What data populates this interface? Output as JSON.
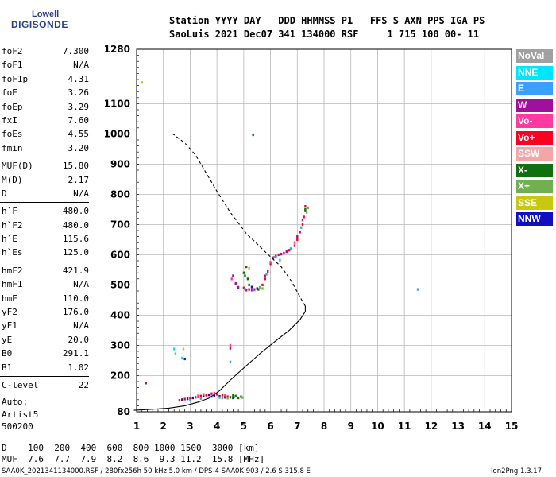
{
  "logo": {
    "line1": "Lowell",
    "line2": "DIGISONDE"
  },
  "header": {
    "line1": "Station YYYY DAY   DDD HHMMSS P1   FFS S AXN PPS IGA PS",
    "line2": "SaoLuis 2021 Dec07 341 134000 RSF     1 715 100 00- 11"
  },
  "params": {
    "group1": [
      {
        "label": "foF2",
        "value": "7.300"
      },
      {
        "label": "foF1",
        "value": "N/A"
      },
      {
        "label": "foF1p",
        "value": "4.31"
      },
      {
        "label": "foE",
        "value": "3.26"
      },
      {
        "label": "foEp",
        "value": "3.29"
      },
      {
        "label": "fxI",
        "value": "7.60"
      },
      {
        "label": "foEs",
        "value": "4.55"
      },
      {
        "label": "fmin",
        "value": "3.20"
      }
    ],
    "group2": [
      {
        "label": "MUF(D)",
        "value": "15.80"
      },
      {
        "label": "M(D)",
        "value": "2.17"
      },
      {
        "label": "D",
        "value": "N/A"
      }
    ],
    "group3": [
      {
        "label": "h`F",
        "value": "480.0"
      },
      {
        "label": "h`F2",
        "value": "480.0"
      },
      {
        "label": "h`E",
        "value": "115.6"
      },
      {
        "label": "h`Es",
        "value": "125.0"
      }
    ],
    "group4": [
      {
        "label": "hmF2",
        "value": "421.9"
      },
      {
        "label": "hmF1",
        "value": "N/A"
      },
      {
        "label": "hmE",
        "value": "110.0"
      },
      {
        "label": "yF2",
        "value": "176.0"
      },
      {
        "label": "yF1",
        "value": "N/A"
      },
      {
        "label": "yE",
        "value": "20.0"
      },
      {
        "label": "B0",
        "value": "291.1"
      },
      {
        "label": "B1",
        "value": "1.02"
      }
    ],
    "group5": [
      {
        "label": "C-level",
        "value": "22"
      }
    ],
    "auto": [
      "Auto:",
      "Artist5",
      "500200"
    ]
  },
  "legend": [
    {
      "label": "NoVal",
      "color": "#a0a0a0"
    },
    {
      "label": "NNE",
      "color": "#00e5ff"
    },
    {
      "label": "E",
      "color": "#3aa0ff"
    },
    {
      "label": "W",
      "color": "#a0109c"
    },
    {
      "label": "Vo-",
      "color": "#ff3aa0"
    },
    {
      "label": "Vo+",
      "color": "#ff0022"
    },
    {
      "label": "SSW",
      "color": "#f4a6a6"
    },
    {
      "label": "X-",
      "color": "#107010"
    },
    {
      "label": "X+",
      "color": "#70b050"
    },
    {
      "label": "SSE",
      "color": "#c8c810"
    },
    {
      "label": "NNW",
      "color": "#1010c0"
    }
  ],
  "muf_table": {
    "d_label": "D",
    "d_values": [
      "100",
      "200",
      "400",
      "600",
      "800",
      "1000",
      "1500",
      "3000"
    ],
    "d_unit": "[km]",
    "muf_label": "MUF",
    "muf_values": [
      "7.6",
      "7.7",
      "7.9",
      "8.2",
      "8.6",
      "9.3",
      "11.2",
      "15.8"
    ],
    "muf_unit": "[MHz]"
  },
  "footer": "SAA0K_2021341134000.RSF / 280fx256h 50 kHz 5.0 km / DPS-4 SAA0K 903 / 2.6 S 315.8 E",
  "version": "Ion2Png 1.3.17",
  "chart_data": {
    "type": "scatter",
    "xlim": [
      1,
      15
    ],
    "ylim": [
      80,
      1280
    ],
    "xticks": [
      1,
      2,
      3,
      4,
      5,
      6,
      7,
      8,
      9,
      10,
      11,
      12,
      13,
      14,
      15
    ],
    "yticks": [
      80,
      200,
      300,
      400,
      500,
      600,
      700,
      800,
      900,
      1000,
      1100,
      1280
    ],
    "grid": true,
    "profile_line": [
      [
        0.9,
        85
      ],
      [
        1.5,
        88
      ],
      [
        2.2,
        92
      ],
      [
        2.8,
        100
      ],
      [
        3.3,
        112
      ],
      [
        3.7,
        125
      ],
      [
        4.1,
        150
      ],
      [
        4.5,
        185
      ],
      [
        5.0,
        225
      ],
      [
        5.6,
        272
      ],
      [
        6.2,
        315
      ],
      [
        6.7,
        350
      ],
      [
        7.1,
        385
      ],
      [
        7.3,
        412
      ],
      [
        7.3,
        430
      ],
      [
        7.1,
        460
      ],
      [
        6.8,
        510
      ],
      [
        6.4,
        560
      ],
      [
        5.8,
        610
      ],
      [
        5.1,
        670
      ],
      [
        4.5,
        740
      ],
      [
        4.0,
        810
      ],
      [
        3.6,
        870
      ],
      [
        3.2,
        930
      ],
      [
        2.8,
        970
      ],
      [
        2.35,
        1000
      ]
    ],
    "trace_points": [
      {
        "color": "#ff0022",
        "pts": [
          [
            5.0,
            490
          ],
          [
            5.2,
            485
          ],
          [
            5.4,
            485
          ],
          [
            5.6,
            490
          ],
          [
            5.7,
            500
          ],
          [
            5.8,
            520
          ],
          [
            5.9,
            545
          ],
          [
            6.0,
            570
          ],
          [
            6.1,
            590
          ],
          [
            6.3,
            600
          ],
          [
            6.5,
            605
          ],
          [
            6.7,
            615
          ],
          [
            6.9,
            630
          ],
          [
            7.0,
            650
          ],
          [
            7.1,
            675
          ],
          [
            7.2,
            700
          ],
          [
            7.25,
            725
          ],
          [
            7.3,
            745
          ],
          [
            7.3,
            760
          ]
        ]
      },
      {
        "color": "#a0109c",
        "pts": [
          [
            4.6,
            530
          ],
          [
            4.7,
            505
          ],
          [
            4.8,
            492
          ],
          [
            5.1,
            483
          ],
          [
            5.3,
            483
          ],
          [
            6.2,
            595
          ],
          [
            6.6,
            610
          ],
          [
            7.0,
            660
          ],
          [
            7.2,
            715
          ],
          [
            5.8,
            530
          ],
          [
            6.4,
            602
          ]
        ]
      },
      {
        "color": "#3aa0ff",
        "pts": [
          [
            5.05,
            486
          ],
          [
            5.35,
            483
          ],
          [
            5.85,
            535
          ],
          [
            6.15,
            592
          ],
          [
            6.75,
            620
          ],
          [
            7.15,
            690
          ],
          [
            6.35,
            582
          ],
          [
            4.5,
            245
          ],
          [
            11.5,
            485
          ]
        ]
      },
      {
        "color": "#107010",
        "pts": [
          [
            5.0,
            540
          ],
          [
            5.05,
            530
          ],
          [
            5.1,
            560
          ],
          [
            5.15,
            520
          ],
          [
            5.2,
            500
          ],
          [
            5.55,
            485
          ],
          [
            7.3,
            750
          ],
          [
            5.35,
            997
          ]
        ]
      },
      {
        "color": "#70b050",
        "pts": [
          [
            5.6,
            492
          ],
          [
            5.7,
            488
          ],
          [
            7.4,
            755
          ],
          [
            7.35,
            740
          ]
        ]
      },
      {
        "color": "#ff3aa0",
        "pts": [
          [
            4.55,
            520
          ],
          [
            6.0,
            575
          ],
          [
            6.9,
            640
          ],
          [
            4.5,
            300
          ]
        ]
      },
      {
        "color": "#00e5ff",
        "pts": [
          [
            2.4,
            288
          ],
          [
            2.45,
            272
          ],
          [
            2.7,
            258
          ]
        ]
      },
      {
        "color": "#1010c0",
        "pts": [
          [
            2.8,
            255
          ],
          [
            5.3,
            493
          ],
          [
            5.5,
            488
          ]
        ]
      },
      {
        "color": "#c8c810",
        "pts": [
          [
            1.2,
            1170
          ],
          [
            5.2,
            555
          ],
          [
            2.75,
            288
          ]
        ]
      },
      {
        "color": "#a0109c",
        "pts": [
          [
            1.35,
            175
          ],
          [
            4.5,
            290
          ]
        ]
      },
      {
        "color": "#ff0022",
        "pts": [
          [
            2.6,
            118
          ],
          [
            2.8,
            122
          ],
          [
            3.0,
            125
          ],
          [
            3.2,
            128
          ],
          [
            3.4,
            132
          ],
          [
            3.6,
            135
          ],
          [
            3.8,
            140
          ],
          [
            4.0,
            138
          ],
          [
            4.2,
            135
          ],
          [
            4.4,
            130
          ]
        ]
      },
      {
        "color": "#1010c0",
        "pts": [
          [
            2.7,
            120
          ],
          [
            2.9,
            123
          ],
          [
            3.1,
            126
          ],
          [
            3.3,
            130
          ],
          [
            3.5,
            133
          ],
          [
            3.7,
            136
          ],
          [
            3.9,
            133
          ],
          [
            4.1,
            131
          ],
          [
            4.3,
            128
          ],
          [
            4.6,
            126
          ]
        ]
      },
      {
        "color": "#107010",
        "pts": [
          [
            4.3,
            130
          ],
          [
            4.5,
            128
          ],
          [
            4.7,
            132
          ],
          [
            4.9,
            130
          ],
          [
            4.8,
            126
          ],
          [
            4.6,
            134
          ]
        ]
      },
      {
        "color": "#70b050",
        "pts": [
          [
            4.1,
            127
          ],
          [
            4.4,
            125
          ],
          [
            4.65,
            129
          ],
          [
            4.95,
            127
          ]
        ]
      },
      {
        "color": "#3aa0ff",
        "pts": [
          [
            3.0,
            118
          ],
          [
            3.4,
            124
          ],
          [
            3.8,
            130
          ],
          [
            4.2,
            126
          ]
        ]
      },
      {
        "color": "#ff3aa0",
        "pts": [
          [
            3.5,
            138
          ],
          [
            3.9,
            142
          ],
          [
            4.3,
            136
          ],
          [
            3.3,
            133
          ]
        ]
      }
    ]
  }
}
